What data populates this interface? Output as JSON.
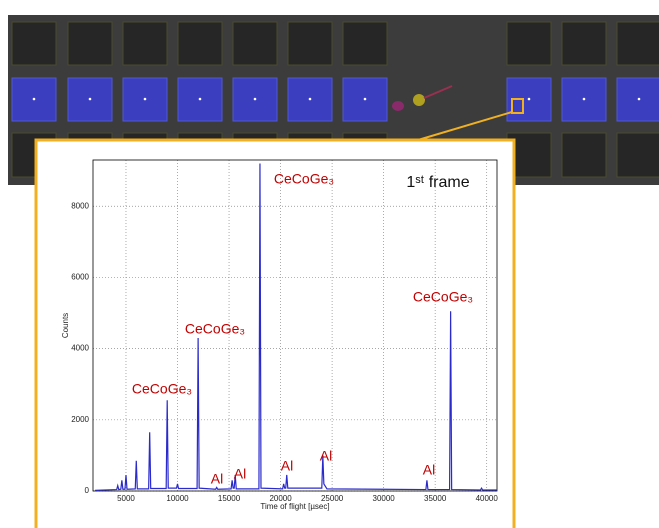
{
  "chart_data": {
    "type": "line",
    "annotations": [
      "CeCoGe₃",
      "1ˢᵗ frame",
      "CeCoGe₃",
      "CeCoGe₃",
      "CeCoGe₃",
      "Al",
      "Al",
      "Al",
      "Al",
      "Al"
    ],
    "x_label": "Time of flight [µsec]",
    "y_label": "Counts",
    "x": [
      2000,
      4100,
      4200,
      4300,
      4500,
      4600,
      4700,
      4900,
      5000,
      5100,
      5900,
      6000,
      6100,
      7200,
      7300,
      7400,
      8900,
      9000,
      9100,
      9900,
      10000,
      10100,
      11900,
      12000,
      12100,
      13700,
      13800,
      13900,
      15200,
      15300,
      15400,
      15500,
      15600,
      15700,
      17900,
      18000,
      18100,
      20200,
      20300,
      20400,
      20500,
      20600,
      20700,
      24000,
      24100,
      24200,
      24500,
      34100,
      34200,
      34300,
      36400,
      36500,
      36600,
      39400,
      39500,
      39600,
      41000
    ],
    "series": [
      {
        "color": "#2b2bcc",
        "values": [
          20,
          40,
          150,
          40,
          50,
          300,
          50,
          50,
          450,
          50,
          60,
          850,
          60,
          60,
          1650,
          70,
          70,
          2550,
          80,
          80,
          200,
          70,
          70,
          4300,
          80,
          50,
          100,
          50,
          60,
          300,
          80,
          80,
          450,
          60,
          60,
          9200,
          80,
          60,
          200,
          80,
          80,
          450,
          80,
          80,
          1000,
          200,
          60,
          40,
          300,
          40,
          40,
          5050,
          40,
          30,
          80,
          30,
          30
        ]
      }
    ],
    "xlim": [
      1800,
      41000
    ],
    "ylim": [
      0,
      9300
    ],
    "xticks": [
      5000,
      10000,
      15000,
      20000,
      25000,
      30000,
      35000,
      40000
    ],
    "yticks": [
      0,
      2000,
      4000,
      6000,
      8000
    ],
    "grid": true
  }
}
